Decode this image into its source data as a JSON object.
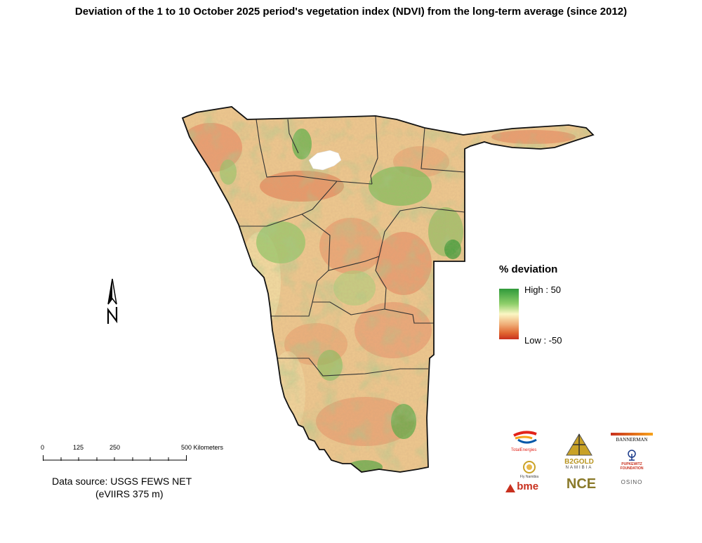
{
  "title": "Deviation of the 1 to 10 October 2025 period's vegetation index (NDVI) from the long-term average (since 2012)",
  "legend": {
    "title": "% deviation",
    "high_label": "High : 50",
    "low_label": "Low : -50",
    "high_color": "#2f9a3a",
    "mid_color": "#fbf7c4",
    "low_color": "#c8301e"
  },
  "scale_bar": {
    "labels": [
      "0",
      "125",
      "250",
      "500 Kilometers"
    ],
    "values_km": [
      0,
      125,
      250,
      500
    ]
  },
  "source": {
    "line1": "Data source: USGS FEWS NET",
    "line2": "(eVIIRS 375 m)"
  },
  "north_arrow": {
    "icon": "north-arrow-icon"
  },
  "logos": {
    "totalenergies": "TotalEnergies",
    "fly_namibia": "Fly Namibia",
    "bme": "bme",
    "b2gold": "B2GOLD",
    "namibia": "NAMIBIA",
    "nce": "NCE",
    "bannerman": "BANNERMAN",
    "pupkewitz": "PUPKEWITZ FOUNDATION",
    "osino": "OSINO"
  }
}
